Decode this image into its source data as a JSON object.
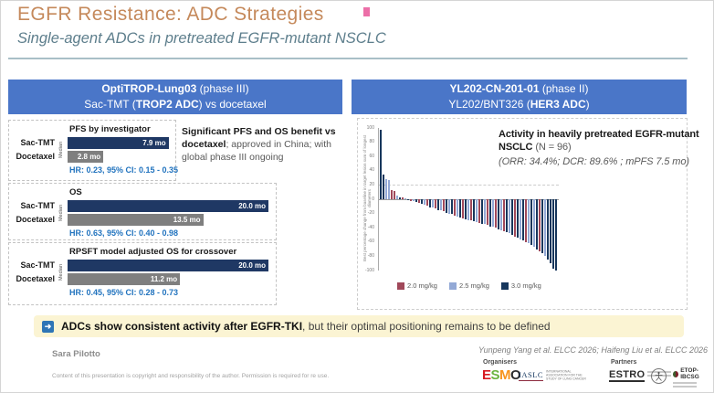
{
  "slide": {
    "title": "EGFR Resistance: ADC Strategies",
    "subtitle": "Single-agent ADCs in pretreated EGFR-mutant NSCLC"
  },
  "trial_left": {
    "name": "OptiTROP-Lung03",
    "phase": " (phase III)",
    "line2_pre": "Sac-TMT (",
    "line2_bold": "TROP2 ADC",
    "line2_post": ") vs docetaxel"
  },
  "trial_right": {
    "name": "YL202-CN-201-01",
    "phase": " (phase II)",
    "line2_pre": "YL202/BNT326 (",
    "line2_bold": "HER3 ADC",
    "line2_post": ")"
  },
  "left_note": {
    "bold": "Significant PFS and OS benefit vs docetaxel",
    "rest": "; approved in China; with global phase III ongoing"
  },
  "right_note": {
    "bold": "Activity in heavily pretreated EGFR-mutant NSCLC",
    "n": " (N = 96)",
    "stats": "(ORR: 34.4%; DCR: 89.6% ; mPFS 7.5 mo)"
  },
  "summary": {
    "arrow": "➜",
    "bold": "ADCs show consistent activity after EGFR-TKI",
    "rest": ", but their optimal positioning remains to be defined"
  },
  "footer": {
    "author": "Sara Pilotto",
    "copyright": "Content of this presentation is copyright and responsibility of the author. Permission is required for re use.",
    "citation": "Yunpeng Yang et al. ELCC 2026; Haifeng Liu et al. ELCC 2026",
    "organisers_label": "Organisers",
    "partners_label": "Partners",
    "logos": {
      "esmo_letters": [
        "E",
        "S",
        "M",
        "O"
      ],
      "esmo_colors": [
        "#D71920",
        "#6CB33F",
        "#F7941D",
        "#2B2B2B"
      ],
      "iaslc": "IASLC",
      "iaslc_tagline": "INTERNATIONAL ASSOCIATION FOR THE STUDY OF LUNG CANCER",
      "estro": "ESTRO",
      "etop": "ETOP-IBCSG"
    }
  },
  "chart_data": [
    {
      "type": "bar",
      "orientation": "horizontal",
      "title": "PFS by investigator",
      "axis_note": "Median",
      "categories": [
        "Sac-TMT",
        "Docetaxel"
      ],
      "values": [
        7.9,
        2.8
      ],
      "labels": [
        "7.9 mo",
        "2.8 mo"
      ],
      "colors": [
        "#1F3864",
        "#7F7F7F"
      ],
      "hr": "HR: 0.23, 95% CI: 0.15 - 0.35"
    },
    {
      "type": "bar",
      "orientation": "horizontal",
      "title": "OS",
      "axis_note": "Median",
      "categories": [
        "Sac-TMT",
        "Docetaxel"
      ],
      "values": [
        20.0,
        13.5
      ],
      "labels": [
        "20.0 mo",
        "13.5 mo"
      ],
      "colors": [
        "#1F3864",
        "#7F7F7F"
      ],
      "hr": "HR: 0.63, 95% CI: 0.40 - 0.98"
    },
    {
      "type": "bar",
      "orientation": "horizontal",
      "title": "RPSFT model adjusted OS for crossover",
      "axis_note": "Median",
      "categories": [
        "Sac-TMT",
        "Docetaxel"
      ],
      "values": [
        20.0,
        11.2
      ],
      "labels": [
        "20.0 mo",
        "11.2 mo"
      ],
      "colors": [
        "#1F3864",
        "#7F7F7F"
      ],
      "hr": "HR: 0.45, 95% CI: 0.28 - 0.73"
    },
    {
      "type": "bar",
      "subtype": "waterfall",
      "ylabel": "Best percentage change from baseline in target lesion sum of longest diameters",
      "ylim": [
        -100,
        100
      ],
      "yticks": [
        100,
        80,
        60,
        40,
        20,
        0,
        -20,
        -40,
        -60,
        -80,
        -100
      ],
      "legend": [
        {
          "label": "2.0 mg/kg",
          "color": "#A0485A"
        },
        {
          "label": "2.5 mg/kg",
          "color": "#93A9D6"
        },
        {
          "label": "3.0 mg/kg",
          "color": "#16365C"
        }
      ],
      "bars": [
        [
          97,
          2
        ],
        [
          35,
          2
        ],
        [
          28,
          1
        ],
        [
          27,
          1
        ],
        [
          13,
          0
        ],
        [
          11,
          0
        ],
        [
          5,
          1
        ],
        [
          3,
          2
        ],
        [
          2,
          0
        ],
        [
          1,
          1
        ],
        [
          -1,
          2
        ],
        [
          -2,
          0
        ],
        [
          -3,
          1
        ],
        [
          -4,
          2
        ],
        [
          -5,
          0
        ],
        [
          -6,
          2
        ],
        [
          -8,
          1
        ],
        [
          -9,
          0
        ],
        [
          -11,
          2
        ],
        [
          -12,
          1
        ],
        [
          -13,
          0
        ],
        [
          -15,
          2
        ],
        [
          -16,
          1
        ],
        [
          -17,
          0
        ],
        [
          -19,
          2
        ],
        [
          -20,
          1
        ],
        [
          -21,
          2
        ],
        [
          -23,
          0
        ],
        [
          -24,
          1
        ],
        [
          -25,
          2
        ],
        [
          -27,
          0
        ],
        [
          -28,
          2
        ],
        [
          -29,
          1
        ],
        [
          -30,
          0
        ],
        [
          -31,
          2
        ],
        [
          -32,
          1
        ],
        [
          -33,
          0
        ],
        [
          -34,
          2
        ],
        [
          -35,
          1
        ],
        [
          -36,
          0
        ],
        [
          -38,
          2
        ],
        [
          -39,
          1
        ],
        [
          -40,
          0
        ],
        [
          -42,
          2
        ],
        [
          -43,
          1
        ],
        [
          -45,
          0
        ],
        [
          -46,
          2
        ],
        [
          -48,
          1
        ],
        [
          -50,
          2
        ],
        [
          -52,
          0
        ],
        [
          -54,
          2
        ],
        [
          -56,
          1
        ],
        [
          -58,
          2
        ],
        [
          -60,
          0
        ],
        [
          -62,
          1
        ],
        [
          -64,
          2
        ],
        [
          -67,
          1
        ],
        [
          -70,
          2
        ],
        [
          -73,
          0
        ],
        [
          -76,
          2
        ],
        [
          -80,
          1
        ],
        [
          -85,
          2
        ],
        [
          -90,
          2
        ],
        [
          -97,
          2
        ],
        [
          -100,
          2
        ]
      ]
    }
  ]
}
